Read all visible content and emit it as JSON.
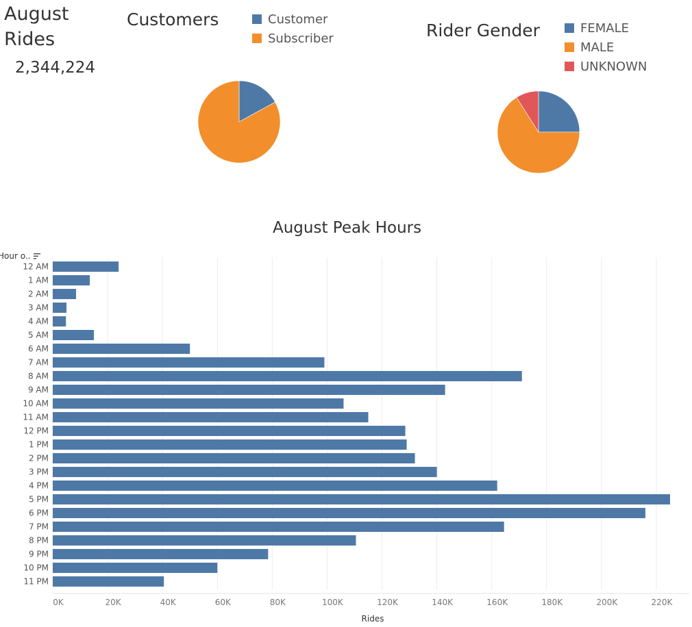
{
  "kpi": {
    "title": "August Rides",
    "value": "2,344,224"
  },
  "customers_chart": {
    "title": "Customers",
    "legend": [
      {
        "label": "Customer",
        "color": "#4e79a7"
      },
      {
        "label": "Subscriber",
        "color": "#f28e2b"
      }
    ]
  },
  "gender_chart": {
    "title": "Rider Gender",
    "legend": [
      {
        "label": "FEMALE",
        "color": "#4e79a7"
      },
      {
        "label": "MALE",
        "color": "#f28e2b"
      },
      {
        "label": "UNKNOWN",
        "color": "#e15759"
      }
    ]
  },
  "peak_chart": {
    "title": "August Peak Hours",
    "row_header": "Hour o..",
    "sort_icon": "sort-descending-icon",
    "xlabel": "Rides",
    "bar_color": "#4e79a7"
  },
  "chart_data": [
    {
      "type": "pie",
      "title": "Customers",
      "categories": [
        "Customer",
        "Subscriber"
      ],
      "values": [
        17,
        83
      ],
      "unit": "percent (estimated)",
      "colors": [
        "#4e79a7",
        "#f28e2b"
      ]
    },
    {
      "type": "pie",
      "title": "Rider Gender",
      "categories": [
        "FEMALE",
        "MALE",
        "UNKNOWN"
      ],
      "values": [
        25,
        66,
        9
      ],
      "unit": "percent (estimated)",
      "colors": [
        "#4e79a7",
        "#f28e2b",
        "#e15759"
      ]
    },
    {
      "type": "bar",
      "orientation": "horizontal",
      "title": "August Peak Hours",
      "categories": [
        "12 AM",
        "1 AM",
        "2 AM",
        "3 AM",
        "4 AM",
        "5 AM",
        "6 AM",
        "7 AM",
        "8 AM",
        "9 AM",
        "10 AM",
        "11 AM",
        "12 PM",
        "1 PM",
        "2 PM",
        "3 PM",
        "4 PM",
        "5 PM",
        "6 PM",
        "7 PM",
        "8 PM",
        "9 PM",
        "10 PM",
        "11 PM"
      ],
      "values": [
        24000,
        13500,
        8500,
        5000,
        4800,
        15000,
        50000,
        99000,
        171000,
        143000,
        106000,
        115000,
        128500,
        129000,
        132000,
        140000,
        162000,
        225000,
        216000,
        164500,
        110500,
        78500,
        60000,
        40500
      ],
      "xlabel": "Rides",
      "ylabel": "Hour o..",
      "xlim": [
        0,
        232000
      ],
      "xticks": [
        "0K",
        "20K",
        "40K",
        "60K",
        "80K",
        "100K",
        "120K",
        "140K",
        "160K",
        "180K",
        "200K",
        "220K"
      ],
      "grid": true
    }
  ]
}
